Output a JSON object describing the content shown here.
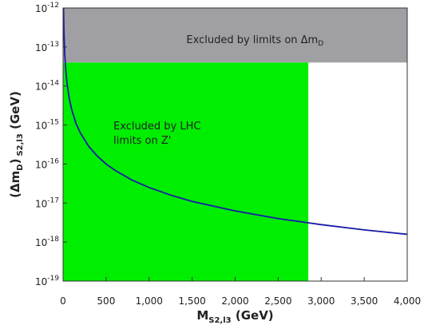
{
  "chart_data": {
    "type": "line",
    "title": "",
    "xlabel": {
      "main": "M",
      "sub": "S2,l3",
      "unit": " (GeV)"
    },
    "ylabel": {
      "main": "(Δm",
      "sub1": "D",
      "mid": ")",
      "sub2": "S2,l3",
      "unit": " (GeV)"
    },
    "xlim": [
      0,
      4000
    ],
    "ylim": [
      1e-19,
      1e-12
    ],
    "yscale": "log",
    "x_ticks": [
      {
        "value": 0,
        "label": "0"
      },
      {
        "value": 500,
        "label": "500"
      },
      {
        "value": 1000,
        "label": "1,000"
      },
      {
        "value": 1500,
        "label": "1,500"
      },
      {
        "value": 2000,
        "label": "2,000"
      },
      {
        "value": 2500,
        "label": "2,500"
      },
      {
        "value": 3000,
        "label": "3,000"
      },
      {
        "value": 3500,
        "label": "3,500"
      },
      {
        "value": 4000,
        "label": "4,000"
      }
    ],
    "y_ticks": [
      {
        "value": 1e-19,
        "base": "10",
        "exp": "-19"
      },
      {
        "value": 1e-18,
        "base": "10",
        "exp": "-18"
      },
      {
        "value": 1e-17,
        "base": "10",
        "exp": "-17"
      },
      {
        "value": 1e-16,
        "base": "10",
        "exp": "-16"
      },
      {
        "value": 1e-15,
        "base": "10",
        "exp": "-15"
      },
      {
        "value": 1e-14,
        "base": "10",
        "exp": "-14"
      },
      {
        "value": 1e-13,
        "base": "10",
        "exp": "-13"
      },
      {
        "value": 1e-12,
        "base": "10",
        "exp": "-12"
      }
    ],
    "regions": [
      {
        "name": "delta-m-exclusion",
        "x_range": [
          0,
          4000
        ],
        "y_range": [
          4e-14,
          1e-12
        ],
        "color": "#a0a0a4",
        "label_parts": {
          "text": "Excluded by limits on Δm",
          "sub": "D"
        }
      },
      {
        "name": "lhc-exclusion",
        "x_range": [
          0,
          2850
        ],
        "y_range": [
          1e-19,
          4e-14
        ],
        "color": "#00ee00",
        "label_lines": [
          "Excluded by LHC",
          "limits on Z'"
        ]
      }
    ],
    "series": [
      {
        "color": "#1a1aa8",
        "x": [
          5,
          10,
          20,
          30,
          40,
          50,
          75,
          100,
          150,
          200,
          300,
          400,
          500,
          600,
          800,
          1000,
          1250,
          1500,
          2000,
          2500,
          3000,
          3500,
          4000
        ],
        "y": [
          1e-12,
          2.5e-13,
          6.3e-14,
          2.8e-14,
          1.58e-14,
          1e-14,
          4.4e-15,
          2.5e-15,
          1.1e-15,
          6.3e-16,
          2.8e-16,
          1.58e-16,
          1e-16,
          7e-17,
          3.9e-17,
          2.5e-17,
          1.6e-17,
          1.1e-17,
          6.3e-18,
          4e-18,
          2.8e-18,
          2.05e-18,
          1.58e-18
        ]
      }
    ],
    "grid": false
  }
}
